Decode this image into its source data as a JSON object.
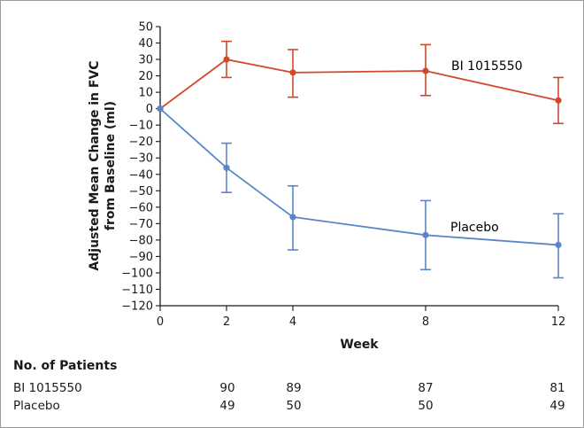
{
  "chart_data": {
    "type": "line",
    "xlabel": "Week",
    "ylabel_lines": [
      "Adjusted Mean Change in FVC",
      "from Baseline (ml)"
    ],
    "x": [
      0,
      2,
      4,
      8,
      12
    ],
    "x_ticks": [
      "0",
      "2",
      "4",
      "8",
      "12"
    ],
    "xlim": [
      0,
      12
    ],
    "ylim": [
      -120,
      50
    ],
    "y_ticks": [
      "50",
      "40",
      "30",
      "20",
      "10",
      "0",
      "−10",
      "−20",
      "−30",
      "−40",
      "−50",
      "−60",
      "−70",
      "−80",
      "−90",
      "−100",
      "−110",
      "−120"
    ],
    "grid": false,
    "series": [
      {
        "name": "BI 1015550",
        "color": "#d2492a",
        "values": [
          0,
          30,
          22,
          23,
          5
        ],
        "error_low": [
          0,
          19,
          7,
          8,
          -9
        ],
        "error_high": [
          0,
          41,
          36,
          39,
          19
        ]
      },
      {
        "name": "Placebo",
        "color": "#5a86c8",
        "values": [
          0,
          -36,
          -66,
          -77,
          -83
        ],
        "error_low": [
          0,
          -51,
          -86,
          -98,
          -103
        ],
        "error_high": [
          0,
          -21,
          -47,
          -56,
          -64
        ]
      }
    ]
  },
  "patients": {
    "title": "No. of Patients",
    "rows": [
      {
        "label": "BI 1015550",
        "counts": [
          "90",
          "89",
          "87",
          "81"
        ]
      },
      {
        "label": "Placebo",
        "counts": [
          "49",
          "50",
          "50",
          "49"
        ]
      }
    ]
  }
}
